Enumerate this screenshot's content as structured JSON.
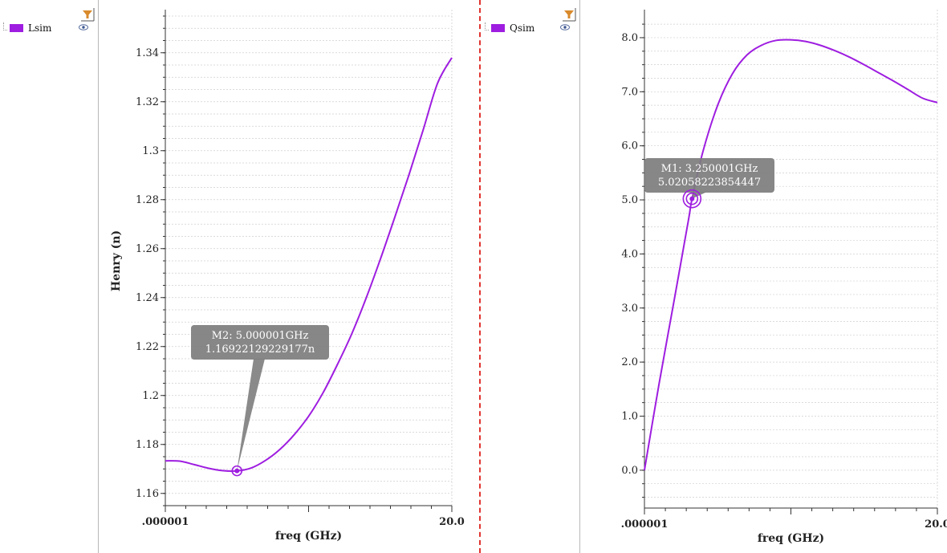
{
  "colors": {
    "series": "#9e1de0",
    "marker_box": "#7d7d7d",
    "grid": "#cfcfcf",
    "divider": "#e0342f",
    "filter": "#d98a2b"
  },
  "icons": [
    "filter-icon",
    "eye-icon"
  ],
  "chart_data": [
    {
      "type": "line",
      "title": "",
      "xlabel": "freq (GHz)",
      "ylabel": "Henry (n)",
      "xlim": [
        1e-06,
        20.0
      ],
      "ylim": [
        1.155,
        1.355
      ],
      "x_tick_labels": [
        ".000001",
        "20.0"
      ],
      "y_ticks": [
        1.16,
        1.18,
        1.2,
        1.22,
        1.24,
        1.26,
        1.28,
        1.3,
        1.32,
        1.34
      ],
      "y_tick_labels": [
        "1.16",
        "1.18",
        "1.2",
        "1.22",
        "1.24",
        "1.26",
        "1.28",
        "1.3",
        "1.32",
        "1.34"
      ],
      "grid": true,
      "legend": "left panel",
      "series": [
        {
          "name": "Lsim",
          "x": [
            1e-06,
            1,
            2,
            3,
            4,
            5,
            6,
            7,
            8,
            9,
            10,
            11,
            12,
            13,
            14,
            15,
            16,
            17,
            18,
            19,
            20
          ],
          "y": [
            1.1733,
            1.1732,
            1.1718,
            1.1703,
            1.1693,
            1.1692,
            1.1704,
            1.1735,
            1.178,
            1.184,
            1.1915,
            1.201,
            1.2125,
            1.225,
            1.2395,
            1.2555,
            1.2725,
            1.29,
            1.3085,
            1.3275,
            1.338
          ]
        }
      ],
      "marker": {
        "label": "M2: 5.000001GHz",
        "value": "1.16922129229177n",
        "x": 5.000001,
        "y": 1.16922129229177
      }
    },
    {
      "type": "line",
      "title": "",
      "xlabel": "freq (GHz)",
      "ylabel": "",
      "xlim": [
        1e-06,
        20.0
      ],
      "ylim": [
        -0.7,
        8.4
      ],
      "x_tick_labels": [
        ".000001",
        "20.0"
      ],
      "y_ticks": [
        0,
        1,
        2,
        3,
        4,
        5,
        6,
        7,
        8
      ],
      "y_tick_labels": [
        "0.0",
        "1.0",
        "2.0",
        "3.0",
        "4.0",
        "5.0",
        "6.0",
        "7.0",
        "8.0"
      ],
      "grid": true,
      "legend": "left panel",
      "series": [
        {
          "name": "Qsim",
          "x": [
            1e-06,
            1,
            2,
            3,
            3.25,
            4,
            5,
            6,
            7,
            8,
            9,
            10,
            11,
            12,
            13,
            14,
            15,
            16,
            17,
            18,
            19,
            20
          ],
          "y": [
            0.0,
            1.6,
            3.1,
            4.62,
            5.02,
            5.9,
            6.75,
            7.33,
            7.68,
            7.86,
            7.95,
            7.96,
            7.93,
            7.86,
            7.76,
            7.64,
            7.5,
            7.35,
            7.2,
            7.04,
            6.88,
            6.8
          ]
        }
      ],
      "marker": {
        "label": "M1: 3.250001GHz",
        "value": "5.02058223854447",
        "x": 3.250001,
        "y": 5.02058223854447
      }
    }
  ]
}
